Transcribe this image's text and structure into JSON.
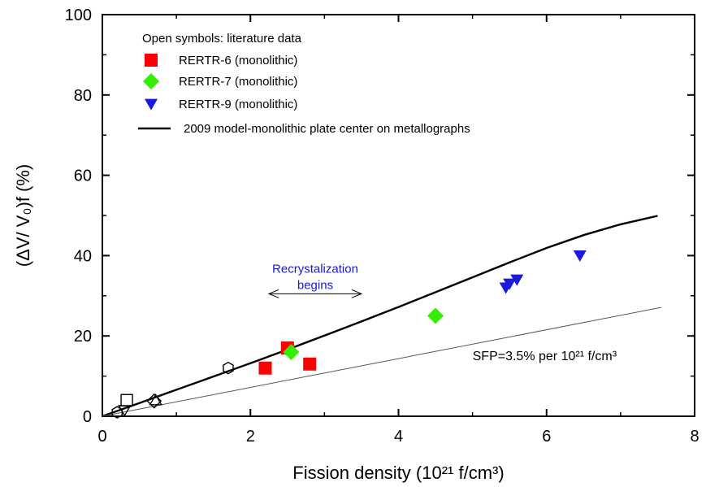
{
  "chart_data": {
    "type": "scatter",
    "xlabel": "Fission density (10²¹ f/cm³)",
    "ylabel": "(ΔV/ V₀)f (%)",
    "xlim": [
      0,
      8
    ],
    "ylim": [
      0,
      100
    ],
    "x_ticks": [
      "0",
      "2",
      "4",
      "6",
      "8"
    ],
    "y_ticks": [
      "0",
      "20",
      "40",
      "60",
      "80",
      "100"
    ],
    "grid": false,
    "legend_placement": "top-left",
    "legend_header": "Open symbols: literature data",
    "series": [
      {
        "name": "RERTR-6 (monolithic)",
        "marker": "square",
        "color": "#ff0000",
        "points": [
          [
            2.2,
            12
          ],
          [
            2.5,
            17
          ],
          [
            2.8,
            13
          ]
        ]
      },
      {
        "name": "RERTR-7 (monolithic)",
        "marker": "diamond",
        "color": "#33ee00",
        "points": [
          [
            2.55,
            16
          ],
          [
            4.5,
            25
          ]
        ]
      },
      {
        "name": "RERTR-9 (monolithic)",
        "marker": "triangle-down",
        "color": "#1a1add",
        "points": [
          [
            5.45,
            32
          ],
          [
            5.5,
            33
          ],
          [
            5.6,
            34
          ],
          [
            6.45,
            40
          ]
        ]
      },
      {
        "name": "2009 model-monolithic plate center on metallographs",
        "marker": "line",
        "color": "#000000",
        "points": [
          [
            0,
            0
          ],
          [
            0.5,
            3.3
          ],
          [
            1,
            6.6
          ],
          [
            1.5,
            9.9
          ],
          [
            2,
            13.2
          ],
          [
            2.5,
            16.6
          ],
          [
            3,
            20.1
          ],
          [
            3.5,
            23.6
          ],
          [
            4,
            27.2
          ],
          [
            4.5,
            30.9
          ],
          [
            5,
            34.6
          ],
          [
            5.5,
            38.3
          ],
          [
            6,
            41.9
          ],
          [
            6.5,
            45.1
          ],
          [
            7,
            47.8
          ],
          [
            7.5,
            49.9
          ]
        ]
      },
      {
        "name": "SFP line",
        "marker": "thin-line",
        "color": "#555555",
        "points": [
          [
            0,
            0
          ],
          [
            7.55,
            27.1
          ]
        ]
      },
      {
        "name": "literature-hexagon",
        "marker": "open-hexagon",
        "color": "#000000",
        "points": [
          [
            0.2,
            1
          ],
          [
            1.7,
            12
          ]
        ]
      },
      {
        "name": "literature-square",
        "marker": "open-square",
        "color": "#000000",
        "points": [
          [
            0.33,
            4
          ]
        ]
      },
      {
        "name": "literature-triangle-down",
        "marker": "open-triangle-down",
        "color": "#000000",
        "points": [
          [
            0.3,
            1.5
          ]
        ]
      },
      {
        "name": "literature-diamond",
        "marker": "open-diamond",
        "color": "#000000",
        "points": [
          [
            0.7,
            3.8
          ]
        ]
      },
      {
        "name": "literature-triangle-up",
        "marker": "open-triangle-up",
        "color": "#000000",
        "points": [
          [
            0.72,
            4
          ]
        ]
      }
    ],
    "annotations": [
      {
        "text_line1": "Recrystalization",
        "text_line2": "begins",
        "arrow_x": [
          2.25,
          3.5
        ],
        "arrow_y": 30.5,
        "color": "#1a1ad6"
      },
      {
        "text": "SFP=3.5% per 10²¹ f/cm³",
        "x": 5.0,
        "y": 14
      }
    ]
  }
}
